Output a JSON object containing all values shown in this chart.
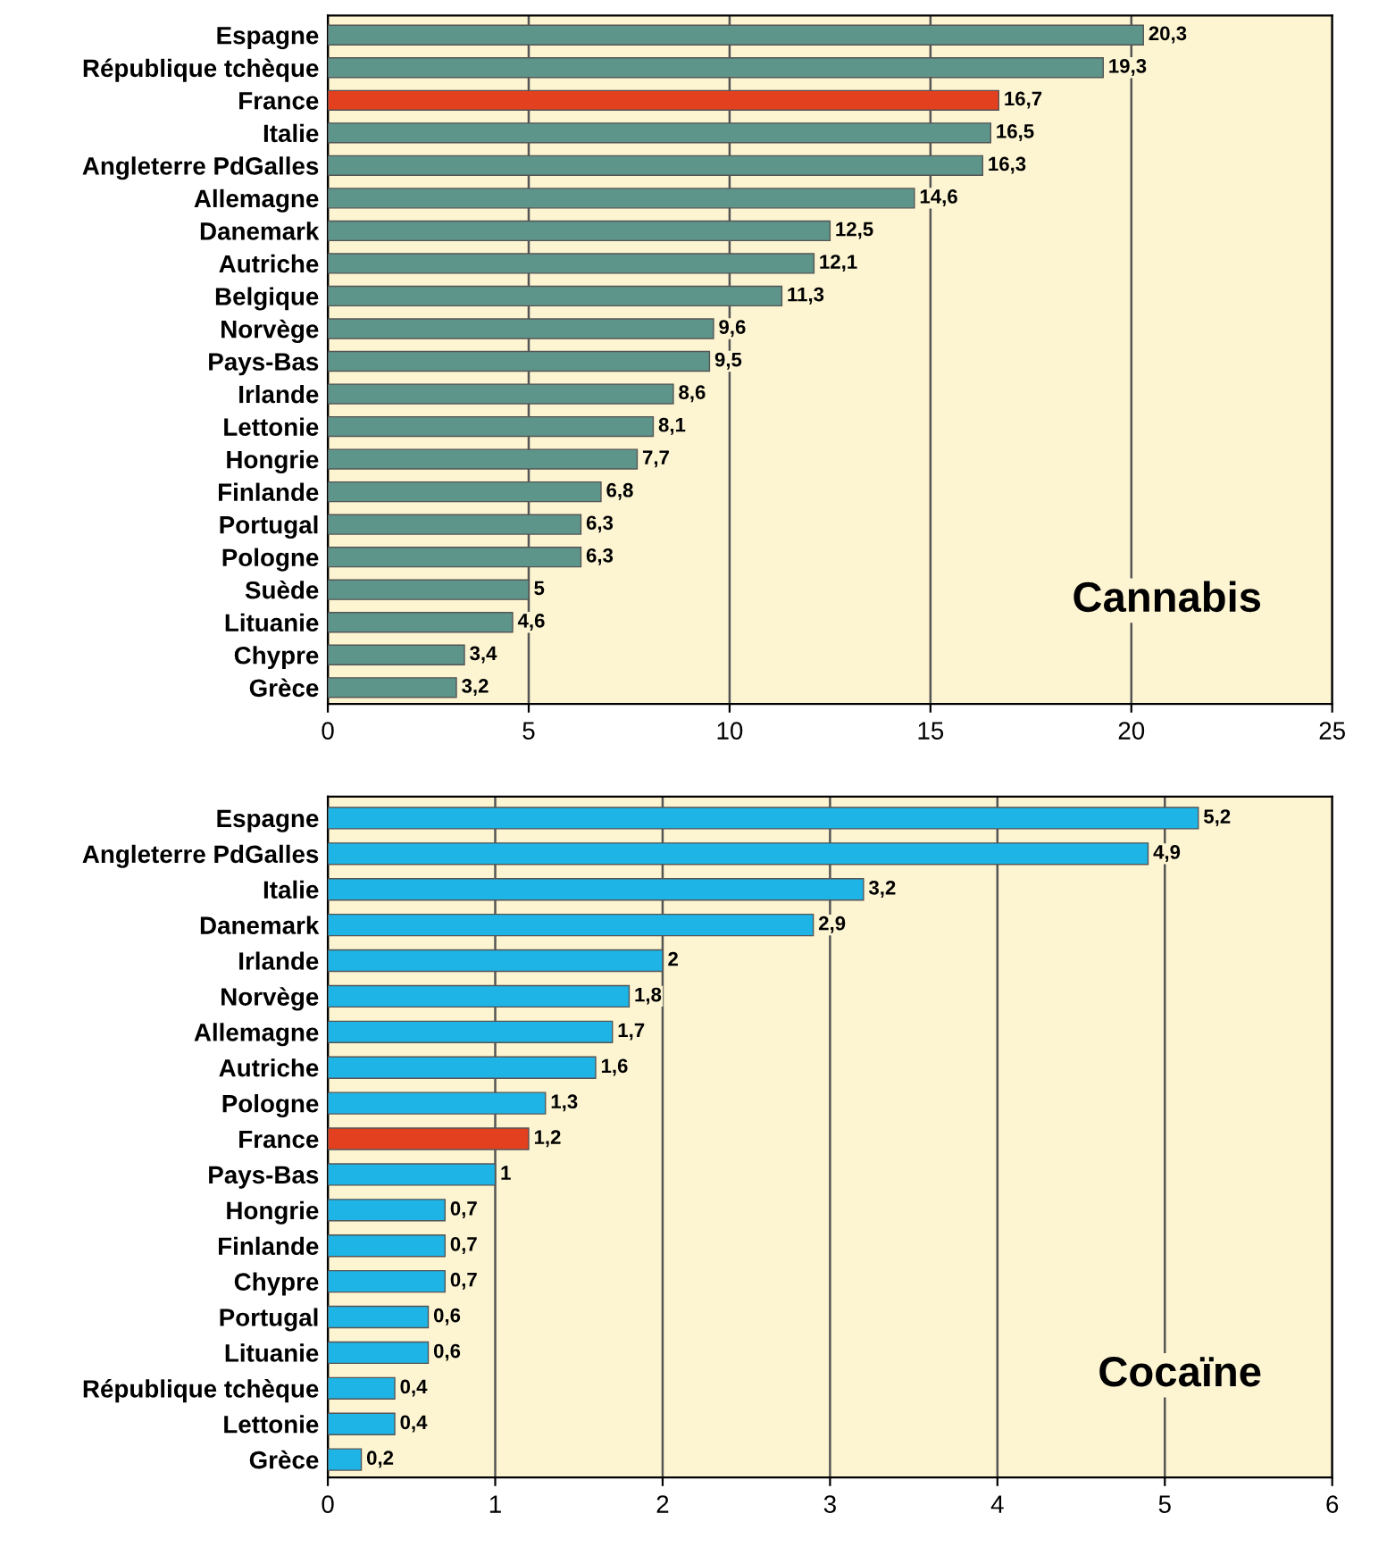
{
  "chart_data": [
    {
      "type": "bar",
      "orientation": "horizontal",
      "categories": [
        "Espagne",
        "République tchèque",
        "France",
        "Italie",
        "Angleterre PdGalles",
        "Allemagne",
        "Danemark",
        "Autriche",
        "Belgique",
        "Norvège",
        "Pays-Bas",
        "Irlande",
        "Lettonie",
        "Hongrie",
        "Finlande",
        "Portugal",
        "Pologne",
        "Suède",
        "Lituanie",
        "Chypre",
        "Grèce"
      ],
      "values": [
        20.3,
        19.3,
        16.7,
        16.5,
        16.3,
        14.6,
        12.5,
        12.1,
        11.3,
        9.6,
        9.5,
        8.6,
        8.1,
        7.7,
        6.8,
        6.3,
        6.3,
        5,
        4.6,
        3.4,
        3.2
      ],
      "value_labels": [
        "20,3",
        "19,3",
        "16,7",
        "16,5",
        "16,3",
        "14,6",
        "12,5",
        "12,1",
        "11,3",
        "9,6",
        "9,5",
        "8,6",
        "8,1",
        "7,7",
        "6,8",
        "6,3",
        "6,3",
        "5",
        "4,6",
        "3,4",
        "3,2"
      ],
      "colors": [
        "#5e958a",
        "#5e958a",
        "#e2401f",
        "#5e958a",
        "#5e958a",
        "#5e958a",
        "#5e958a",
        "#5e958a",
        "#5e958a",
        "#5e958a",
        "#5e958a",
        "#5e958a",
        "#5e958a",
        "#5e958a",
        "#5e958a",
        "#5e958a",
        "#5e958a",
        "#5e958a",
        "#5e958a",
        "#5e958a",
        "#5e958a"
      ],
      "xlim": [
        0,
        25
      ],
      "xticks": [
        0,
        5,
        10,
        15,
        20,
        25
      ],
      "grid": "x",
      "annotations": [
        "Cannabis"
      ]
    },
    {
      "type": "bar",
      "orientation": "horizontal",
      "categories": [
        "Espagne",
        "Angleterre PdGalles",
        "Italie",
        "Danemark",
        "Irlande",
        "Norvège",
        "Allemagne",
        "Autriche",
        "Pologne",
        "France",
        "Pays-Bas",
        "Hongrie",
        "Finlande",
        "Chypre",
        "Portugal",
        "Lituanie",
        "République tchèque",
        "Lettonie",
        "Grèce"
      ],
      "values": [
        5.2,
        4.9,
        3.2,
        2.9,
        2,
        1.8,
        1.7,
        1.6,
        1.3,
        1.2,
        1,
        0.7,
        0.7,
        0.7,
        0.6,
        0.6,
        0.4,
        0.4,
        0.2
      ],
      "value_labels": [
        "5,2",
        "4,9",
        "3,2",
        "2,9",
        "2",
        "1,8",
        "1,7",
        "1,6",
        "1,3",
        "1,2",
        "1",
        "0,7",
        "0,7",
        "0,7",
        "0,6",
        "0,6",
        "0,4",
        "0,4",
        "0,2"
      ],
      "colors": [
        "#1eb4e6",
        "#1eb4e6",
        "#1eb4e6",
        "#1eb4e6",
        "#1eb4e6",
        "#1eb4e6",
        "#1eb4e6",
        "#1eb4e6",
        "#1eb4e6",
        "#e2401f",
        "#1eb4e6",
        "#1eb4e6",
        "#1eb4e6",
        "#1eb4e6",
        "#1eb4e6",
        "#1eb4e6",
        "#1eb4e6",
        "#1eb4e6",
        "#1eb4e6"
      ],
      "xlim": [
        0,
        6
      ],
      "xticks": [
        0,
        1,
        2,
        3,
        4,
        5,
        6
      ],
      "grid": "x",
      "annotations": [
        "Cocaïne"
      ]
    }
  ]
}
